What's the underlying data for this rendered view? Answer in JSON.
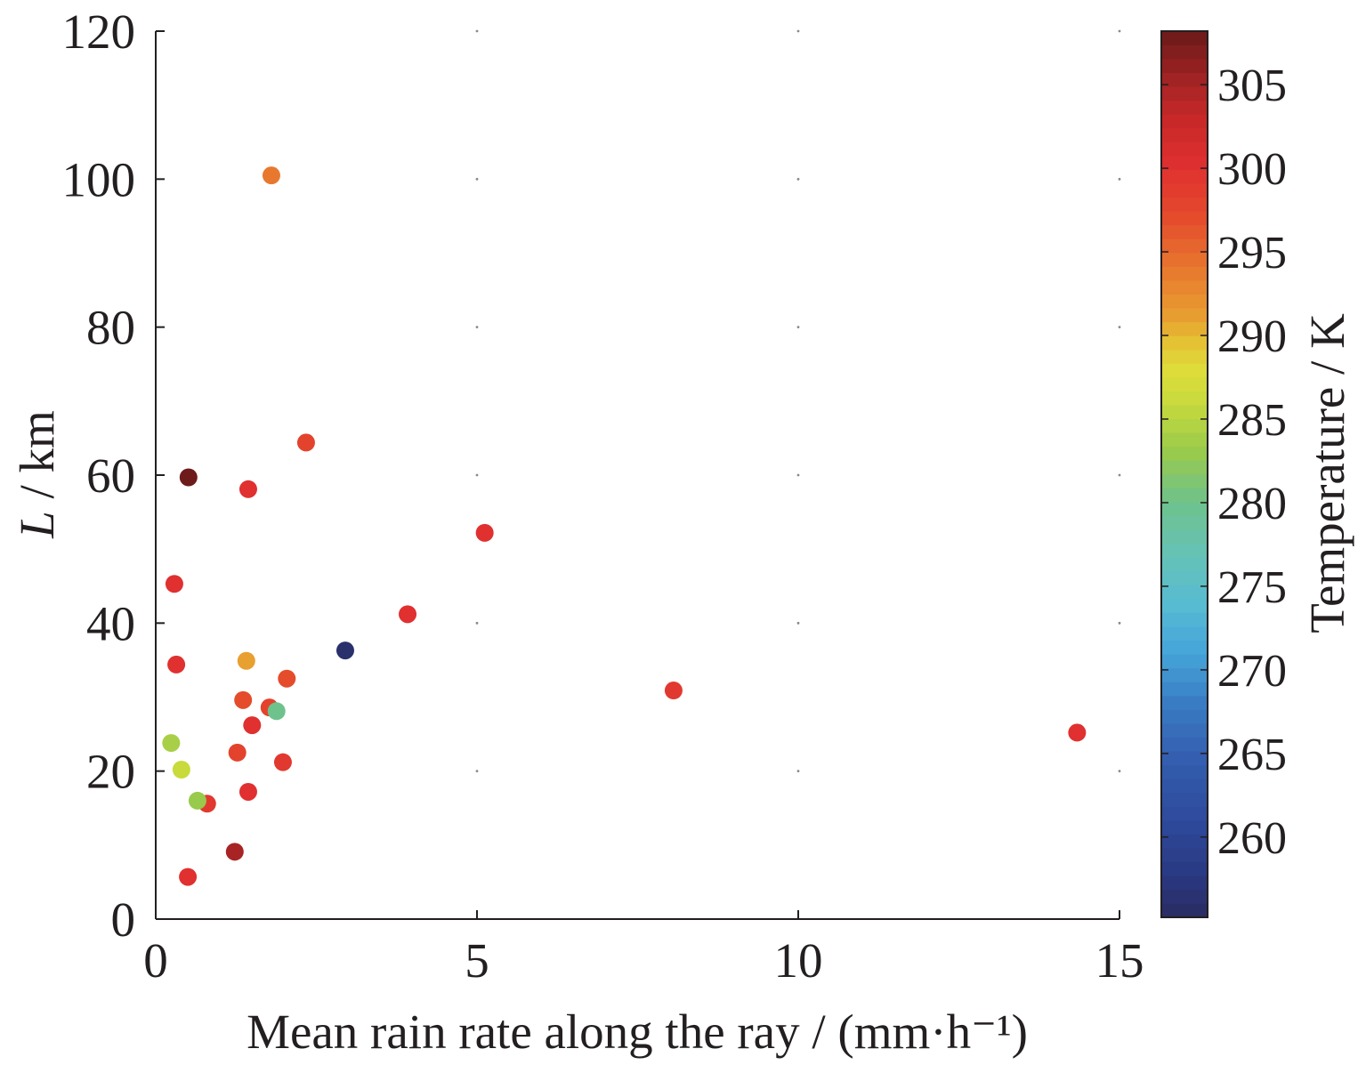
{
  "chart_data": {
    "type": "scatter",
    "xlabel": "Mean rain rate along the ray / (mm·h⁻¹)",
    "ylabel": "L / km",
    "xlim": [
      0,
      15
    ],
    "ylim": [
      0,
      120
    ],
    "xticks": [
      0,
      5,
      10,
      15
    ],
    "yticks": [
      0,
      20,
      40,
      60,
      80,
      100,
      120
    ],
    "grid": true,
    "colorbar": {
      "label": "Temperature / K",
      "range": [
        255.2,
        308.2
      ],
      "ticks": [
        260,
        265,
        270,
        275,
        280,
        285,
        290,
        295,
        300,
        305
      ],
      "colormap": [
        [
          255.2,
          "#2a2c62"
        ],
        [
          258,
          "#2a3a84"
        ],
        [
          261,
          "#2e4a9c"
        ],
        [
          265,
          "#3460b0"
        ],
        [
          268,
          "#3a7cc4"
        ],
        [
          271,
          "#46a4da"
        ],
        [
          274,
          "#58bcd2"
        ],
        [
          277,
          "#66c2b4"
        ],
        [
          280,
          "#6ec28c"
        ],
        [
          283,
          "#98ca4c"
        ],
        [
          286,
          "#c8da3c"
        ],
        [
          288,
          "#dedc3a"
        ],
        [
          289.5,
          "#e4c434"
        ],
        [
          291,
          "#e8a030"
        ],
        [
          294,
          "#e8782e"
        ],
        [
          297,
          "#e44c2c"
        ],
        [
          300,
          "#e03030"
        ],
        [
          303,
          "#c82828"
        ],
        [
          305,
          "#a82424"
        ],
        [
          308.2,
          "#6a1a1a"
        ]
      ]
    },
    "points": [
      {
        "x": 1.8,
        "y": 100.5,
        "temperature": 294
      },
      {
        "x": 2.34,
        "y": 64.4,
        "temperature": 298
      },
      {
        "x": 0.51,
        "y": 59.7,
        "temperature": 308
      },
      {
        "x": 1.44,
        "y": 58.1,
        "temperature": 300
      },
      {
        "x": 5.12,
        "y": 52.2,
        "temperature": 300
      },
      {
        "x": 0.29,
        "y": 45.3,
        "temperature": 300
      },
      {
        "x": 3.92,
        "y": 41.2,
        "temperature": 300
      },
      {
        "x": 2.95,
        "y": 36.3,
        "temperature": 256
      },
      {
        "x": 0.32,
        "y": 34.4,
        "temperature": 300
      },
      {
        "x": 1.41,
        "y": 34.9,
        "temperature": 291
      },
      {
        "x": 2.04,
        "y": 32.5,
        "temperature": 297
      },
      {
        "x": 8.06,
        "y": 30.9,
        "temperature": 299
      },
      {
        "x": 1.36,
        "y": 29.6,
        "temperature": 297
      },
      {
        "x": 1.77,
        "y": 28.6,
        "temperature": 298
      },
      {
        "x": 1.88,
        "y": 28.1,
        "temperature": 280
      },
      {
        "x": 1.5,
        "y": 26.2,
        "temperature": 300
      },
      {
        "x": 14.34,
        "y": 25.2,
        "temperature": 300
      },
      {
        "x": 0.24,
        "y": 23.8,
        "temperature": 284
      },
      {
        "x": 1.27,
        "y": 22.5,
        "temperature": 298
      },
      {
        "x": 1.98,
        "y": 21.2,
        "temperature": 299
      },
      {
        "x": 0.4,
        "y": 20.2,
        "temperature": 286
      },
      {
        "x": 1.44,
        "y": 17.2,
        "temperature": 300
      },
      {
        "x": 0.8,
        "y": 15.6,
        "temperature": 299
      },
      {
        "x": 0.65,
        "y": 16.0,
        "temperature": 283
      },
      {
        "x": 1.23,
        "y": 9.1,
        "temperature": 305
      },
      {
        "x": 0.5,
        "y": 5.7,
        "temperature": 300
      }
    ]
  }
}
